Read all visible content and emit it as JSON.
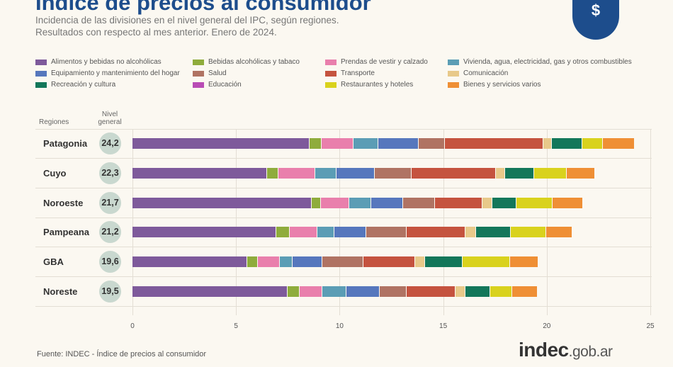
{
  "header": {
    "title": "Índice de precios al consumidor",
    "subtitle1": "Incidencia de las divisiones en el nivel general del IPC, según regiones.",
    "subtitle2": "Resultados con respecto al mes anterior. Enero de 2024.",
    "logo_icon": "dollar-building-icon"
  },
  "table_headers": {
    "regions": "Regiones",
    "general1": "Nivel",
    "general2": "general"
  },
  "footer": {
    "source": "Fuente: INDEC - Índice de precios al consumidor",
    "brand_main": "indec",
    "brand_suffix": ".gob.ar"
  },
  "chart_data": {
    "type": "bar",
    "orientation": "horizontal",
    "stacked": true,
    "title": "Índice de precios al consumidor",
    "xlim": [
      0,
      25
    ],
    "xticks": [
      "0",
      "5",
      "10",
      "15",
      "20",
      "25"
    ],
    "grid": true,
    "legend_position": "top",
    "categories": [
      "Patagonia",
      "Cuyo",
      "Noroeste",
      "Pampeana",
      "GBA",
      "Noreste"
    ],
    "general_level": [
      "24,2",
      "22,3",
      "21,7",
      "21,2",
      "19,6",
      "19,5"
    ],
    "series": [
      {
        "name": "Alimentos y bebidas no alcohólicas",
        "color": "#7e5a9b",
        "values": [
          8.54,
          6.51,
          8.65,
          6.95,
          5.55,
          7.49
        ]
      },
      {
        "name": "Bebidas alcohólicas y tabaco",
        "color": "#8fac3c",
        "values": [
          0.59,
          0.55,
          0.46,
          0.64,
          0.51,
          0.58
        ]
      },
      {
        "name": "Prendas de vestir y calzado",
        "color": "#e97fac",
        "values": [
          1.54,
          1.78,
          1.37,
          1.32,
          1.06,
          1.1
        ]
      },
      {
        "name": "Vivienda, agua, electricidad, gas y otros combustibles",
        "color": "#5b9db5",
        "values": [
          1.2,
          1.02,
          1.03,
          0.83,
          0.6,
          1.15
        ]
      },
      {
        "name": "Equipamiento y mantenimiento del hogar",
        "color": "#5677bd",
        "values": [
          1.95,
          1.85,
          1.54,
          1.53,
          1.46,
          1.62
        ]
      },
      {
        "name": "Salud",
        "color": "#b07363",
        "values": [
          1.26,
          1.77,
          1.54,
          1.96,
          1.97,
          1.31
        ]
      },
      {
        "name": "Transporte",
        "color": "#c5533f",
        "values": [
          4.75,
          4.08,
          2.3,
          2.86,
          2.5,
          2.33
        ]
      },
      {
        "name": "Comunicación",
        "color": "#e8c98a",
        "values": [
          0.42,
          0.43,
          0.49,
          0.49,
          0.49,
          0.5
        ]
      },
      {
        "name": "Recreación y cultura",
        "color": "#13775a",
        "values": [
          1.46,
          1.41,
          1.16,
          1.69,
          1.79,
          1.19
        ]
      },
      {
        "name": "Educación",
        "color": "#b94cb5",
        "values": [
          0,
          0,
          0,
          0,
          0,
          0
        ]
      },
      {
        "name": "Restaurantes y hoteles",
        "color": "#d9d21d",
        "values": [
          1.01,
          1.58,
          1.74,
          1.7,
          2.3,
          1.05
        ]
      },
      {
        "name": "Bienes y servicios varios",
        "color": "#ef8f35",
        "values": [
          1.52,
          1.35,
          1.47,
          1.28,
          1.35,
          1.23
        ]
      }
    ]
  }
}
